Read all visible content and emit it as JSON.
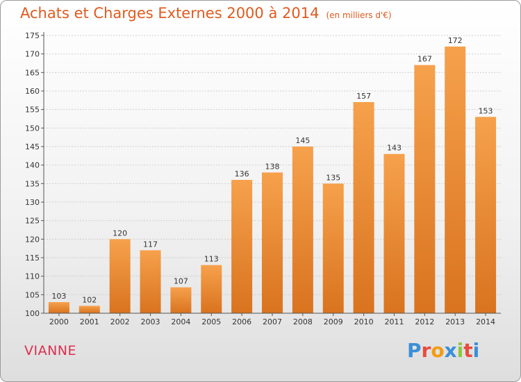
{
  "title": "Achats et Charges Externes 2000 à 2014",
  "subtitle": "(en milliers d'€)",
  "place": "VIANNE",
  "logo": {
    "letters": [
      "P",
      "r",
      "o",
      "x",
      "i",
      "t",
      "i"
    ],
    "colors": [
      "#3a8fd8",
      "#e84c3d",
      "#f39c12",
      "#3a8fd8",
      "#8cc63f",
      "#e84c3d",
      "#3a8fd8"
    ]
  },
  "colors": {
    "bar_light": "#f6a14c",
    "bar_dark": "#d9731f",
    "axis": "#555555",
    "grid": "#cfcfcf",
    "title": "#e05a1e"
  },
  "chart_data": {
    "type": "bar",
    "title": "Achats et Charges Externes 2000 à 2014",
    "subtitle": "(en milliers d'€)",
    "categories": [
      "2000",
      "2001",
      "2002",
      "2003",
      "2004",
      "2005",
      "2006",
      "2007",
      "2008",
      "2009",
      "2010",
      "2011",
      "2012",
      "2013",
      "2014"
    ],
    "values": [
      103,
      102,
      120,
      117,
      107,
      113,
      136,
      138,
      145,
      135,
      157,
      143,
      167,
      172,
      153
    ],
    "ylim": [
      100,
      175
    ],
    "yticks": [
      100,
      105,
      110,
      115,
      120,
      125,
      130,
      135,
      140,
      145,
      150,
      155,
      160,
      165,
      170,
      175
    ],
    "grid": true,
    "xlabel": "",
    "ylabel": ""
  }
}
